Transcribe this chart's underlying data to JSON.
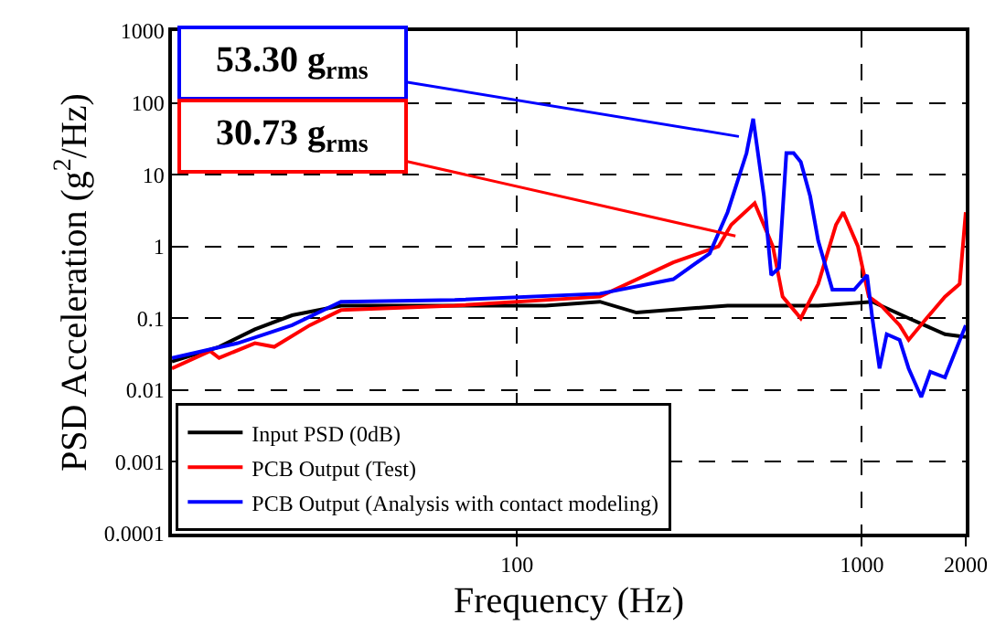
{
  "chart_data": {
    "type": "line",
    "xlabel": "Frequency (Hz)",
    "ylabel": "PSD Acceleration (g$^{2}$/Hz)",
    "log": "xy",
    "grid": true,
    "legend": "bottom left",
    "line_style": "solid",
    "marker": "none",
    "xlim": [
      10,
      2000
    ],
    "xticks": [
      100,
      1000,
      2000
    ],
    "ylim": [
      0.0001,
      1000
    ],
    "yticks": [
      0.0001,
      0.001,
      0.01,
      0.1,
      1,
      10,
      100,
      1000
    ],
    "series": [
      {
        "name": "Input PSD (0dB)",
        "color": "#000000",
        "x": [
          10,
          13.7,
          17.4,
          22.3,
          30.9,
          66,
          121,
          174,
          222,
          408,
          747,
          1072,
          1366,
          1741,
          2000
        ],
        "values": [
          0.025,
          0.04,
          0.07,
          0.11,
          0.15,
          0.15,
          0.15,
          0.17,
          0.12,
          0.15,
          0.15,
          0.17,
          0.1,
          0.06,
          0.055
        ]
      },
      {
        "name": "PCB Output (Test)",
        "color": "#ff0000",
        "x": [
          10,
          12.9,
          13.7,
          17.4,
          19.8,
          25.1,
          30.9,
          66,
          174,
          284,
          384,
          418,
          489,
          552,
          589,
          665,
          747,
          841,
          883,
          974,
          1047,
          1137,
          1286,
          1366,
          1540,
          1741,
          1920,
          2000
        ],
        "values": [
          0.02,
          0.035,
          0.028,
          0.045,
          0.04,
          0.08,
          0.13,
          0.15,
          0.2,
          0.6,
          1.0,
          2,
          4,
          1,
          0.2,
          0.1,
          0.3,
          2,
          3,
          1,
          0.2,
          0.15,
          0.08,
          0.05,
          0.1,
          0.2,
          0.3,
          3
        ]
      },
      {
        "name": "PCB Output (Analysis with contact modeling)",
        "color": "#0000ff",
        "x": [
          10,
          15.5,
          22.3,
          30.9,
          66,
          174,
          284,
          362,
          408,
          463,
          484,
          520,
          546,
          575,
          604,
          634,
          665,
          708,
          747,
          821,
          950,
          1035,
          1072,
          1125,
          1180,
          1286,
          1366,
          1486,
          1578,
          1741,
          2000
        ],
        "values": [
          0.028,
          0.045,
          0.08,
          0.17,
          0.18,
          0.22,
          0.35,
          0.8,
          3,
          20,
          60,
          5,
          0.4,
          0.5,
          20,
          20,
          15,
          5,
          1.2,
          0.25,
          0.25,
          0.4,
          0.1,
          0.02,
          0.06,
          0.05,
          0.02,
          0.008,
          0.018,
          0.015,
          0.08
        ]
      }
    ],
    "annotations": [
      {
        "text": "53.30 g$_{rms}$",
        "x": 440,
        "y": 34
      },
      {
        "text": "30.73 g$_{rms}$",
        "x": 430,
        "y": 1.4
      }
    ]
  }
}
